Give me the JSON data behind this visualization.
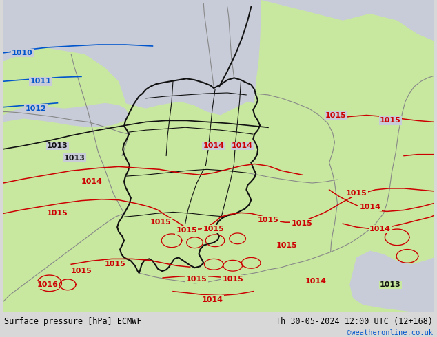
{
  "title_left": "Surface pressure [hPa] ECMWF",
  "title_right": "Th 30-05-2024 12:00 UTC (12+168)",
  "credit": "©weatheronline.co.uk",
  "sea_color": "#c8ccd8",
  "land_light": "#c8e8a0",
  "land_green": "#b8e080",
  "bottom_bar_color": "#d8d8d8",
  "border_de_color": "#111111",
  "border_eu_color": "#888888",
  "isobar_blue": "#0055cc",
  "isobar_black": "#111111",
  "isobar_red": "#cc0000",
  "label_fontsize": 8,
  "title_fontsize": 8.5,
  "figsize": [
    6.34,
    4.9
  ],
  "dpi": 100
}
